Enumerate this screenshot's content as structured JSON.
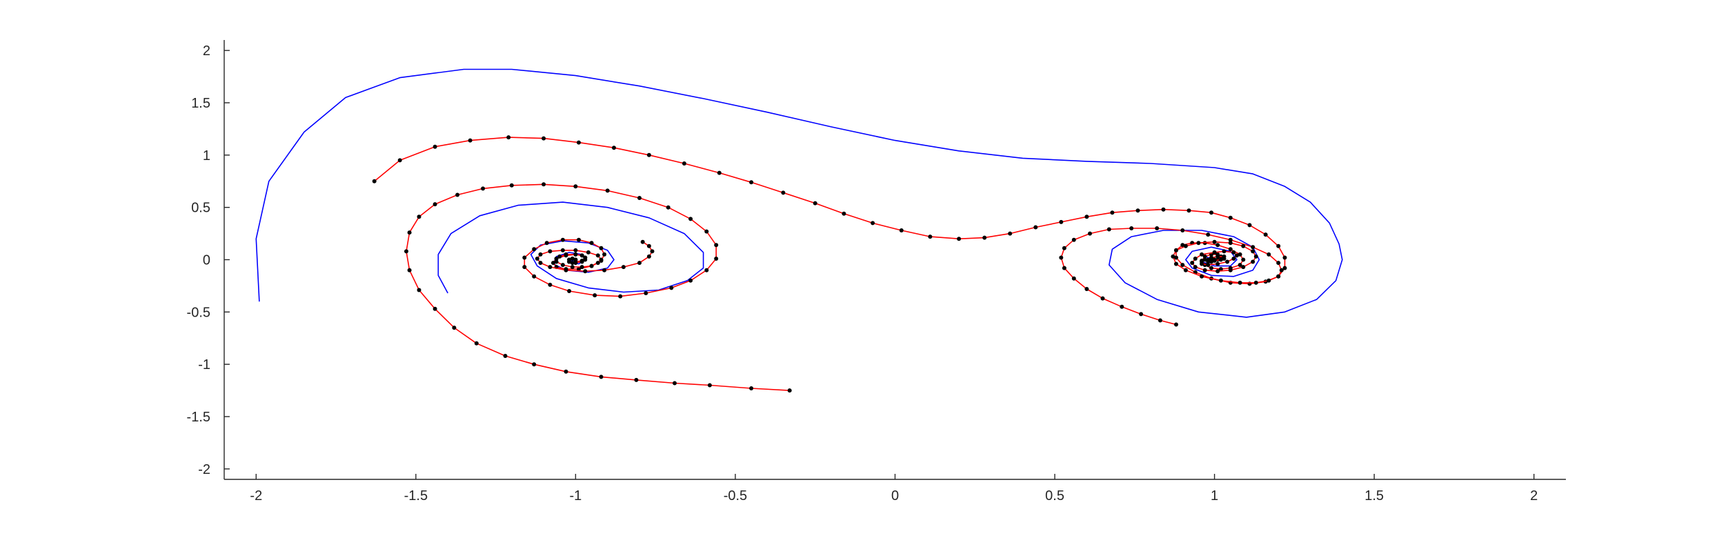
{
  "chart_data": {
    "type": "line",
    "title": "",
    "xlabel": "",
    "ylabel": "",
    "xlim": [
      -2.1,
      2.1
    ],
    "ylim": [
      -2.1,
      2.1
    ],
    "xticks": [
      -2,
      -1.5,
      -1,
      -0.5,
      0,
      0.5,
      1,
      1.5,
      2
    ],
    "yticks": [
      -2,
      -1.5,
      -1,
      -0.5,
      0,
      0.5,
      1,
      1.5,
      2
    ],
    "xtick_labels": [
      "-2",
      "-1.5",
      "-1",
      "-0.5",
      "0",
      "0.5",
      "1",
      "1.5",
      "2"
    ],
    "ytick_labels": [
      "-2",
      "-1.5",
      "-1",
      "-0.5",
      "0",
      "0.5",
      "1",
      "1.5",
      "2"
    ],
    "grid": false,
    "legend": "none",
    "colors": {
      "blue": "#0000ff",
      "red": "#ff0000",
      "marker": "#000000"
    },
    "series": [
      {
        "style": "blue-line",
        "x": [
          -1.99,
          -2.0,
          -1.96,
          -1.85,
          -1.72,
          -1.55,
          -1.35,
          -1.2,
          -1.0,
          -0.8,
          -0.6,
          -0.4,
          -0.2,
          0.0,
          0.2,
          0.4,
          0.6,
          0.8,
          1.0,
          1.12,
          1.22,
          1.3,
          1.36,
          1.39,
          1.4,
          1.38,
          1.32,
          1.22,
          1.1,
          0.95,
          0.82,
          0.72,
          0.67,
          0.68,
          0.74,
          0.84,
          0.96,
          1.06,
          1.12,
          1.14,
          1.12,
          1.06,
          0.99,
          0.93,
          0.91,
          0.93,
          0.99,
          1.05,
          1.07,
          1.05,
          1.0,
          0.96,
          0.97,
          1.0
        ],
        "y": [
          -0.4,
          0.2,
          0.75,
          1.22,
          1.55,
          1.74,
          1.82,
          1.82,
          1.76,
          1.66,
          1.54,
          1.41,
          1.27,
          1.14,
          1.04,
          0.97,
          0.94,
          0.92,
          0.88,
          0.82,
          0.7,
          0.55,
          0.35,
          0.15,
          0.0,
          -0.2,
          -0.38,
          -0.5,
          -0.55,
          -0.5,
          -0.38,
          -0.22,
          -0.05,
          0.1,
          0.22,
          0.28,
          0.28,
          0.22,
          0.12,
          0.0,
          -0.1,
          -0.16,
          -0.15,
          -0.08,
          0.0,
          0.08,
          0.12,
          0.08,
          0.0,
          -0.06,
          -0.06,
          -0.02,
          0.03,
          0.0
        ]
      },
      {
        "style": "blue-line",
        "x": [
          -1.4,
          -1.43,
          -1.43,
          -1.39,
          -1.3,
          -1.18,
          -1.04,
          -0.9,
          -0.77,
          -0.66,
          -0.6,
          -0.6,
          -0.65,
          -0.74,
          -0.85,
          -0.96,
          -1.06,
          -1.12,
          -1.14,
          -1.11,
          -1.04,
          -0.96,
          -0.9,
          -0.88,
          -0.9,
          -0.96,
          -1.03,
          -1.07,
          -1.06,
          -1.02,
          -0.98,
          -0.97,
          -0.99,
          -1.02,
          -1.0
        ],
        "y": [
          -0.32,
          -0.15,
          0.05,
          0.25,
          0.42,
          0.52,
          0.55,
          0.5,
          0.4,
          0.25,
          0.07,
          -0.08,
          -0.2,
          -0.29,
          -0.31,
          -0.27,
          -0.18,
          -0.06,
          0.05,
          0.14,
          0.18,
          0.16,
          0.09,
          0.0,
          -0.08,
          -0.12,
          -0.1,
          -0.04,
          0.03,
          0.07,
          0.05,
          0.0,
          -0.04,
          -0.02,
          0.0
        ]
      },
      {
        "style": "red-dotted-line",
        "x": [
          -1.63,
          -1.55,
          -1.44,
          -1.33,
          -1.21,
          -1.1,
          -0.99,
          -0.88,
          -0.77,
          -0.66,
          -0.55,
          -0.45,
          -0.35,
          -0.25,
          -0.16,
          -0.07,
          0.02,
          0.11,
          0.2,
          0.28,
          0.36,
          0.44,
          0.52,
          0.6,
          0.68,
          0.76,
          0.84,
          0.92,
          0.99,
          1.05,
          1.11,
          1.16,
          1.2,
          1.22,
          1.22,
          1.2,
          1.16,
          1.11,
          1.05,
          0.99,
          0.94,
          0.9,
          0.88,
          0.88,
          0.9,
          0.93,
          0.97,
          1.01,
          1.05,
          1.08,
          1.09,
          1.08,
          1.05,
          1.02,
          0.99,
          0.97,
          0.96,
          0.97,
          0.99,
          1.01,
          1.02,
          1.01,
          0.99,
          0.98,
          0.99,
          1.0
        ],
        "y": [
          0.75,
          0.95,
          1.08,
          1.14,
          1.17,
          1.16,
          1.12,
          1.07,
          1.0,
          0.92,
          0.83,
          0.74,
          0.64,
          0.54,
          0.44,
          0.35,
          0.28,
          0.22,
          0.2,
          0.21,
          0.25,
          0.31,
          0.36,
          0.41,
          0.45,
          0.47,
          0.48,
          0.47,
          0.45,
          0.4,
          0.33,
          0.24,
          0.13,
          0.02,
          -0.08,
          -0.16,
          -0.21,
          -0.23,
          -0.22,
          -0.18,
          -0.12,
          -0.05,
          0.02,
          0.09,
          0.14,
          0.16,
          0.16,
          0.14,
          0.1,
          0.05,
          0.0,
          -0.05,
          -0.08,
          -0.09,
          -0.08,
          -0.05,
          -0.01,
          0.03,
          0.05,
          0.05,
          0.03,
          0.0,
          -0.02,
          -0.02,
          0.0,
          0.0
        ]
      },
      {
        "style": "red-dotted-line",
        "x": [
          -0.33,
          -0.45,
          -0.58,
          -0.69,
          -0.81,
          -0.92,
          -1.03,
          -1.13,
          -1.22,
          -1.31,
          -1.38,
          -1.44,
          -1.49,
          -1.52,
          -1.53,
          -1.52,
          -1.49,
          -1.44,
          -1.37,
          -1.29,
          -1.2,
          -1.1,
          -1.0,
          -0.9,
          -0.8,
          -0.71,
          -0.64,
          -0.59,
          -0.56,
          -0.56,
          -0.59,
          -0.64,
          -0.7,
          -0.78,
          -0.86,
          -0.94,
          -1.02,
          -1.08,
          -1.13,
          -1.16,
          -1.16,
          -1.13,
          -1.09,
          -1.04,
          -0.99,
          -0.95,
          -0.92,
          -0.91,
          -0.92,
          -0.95,
          -0.99,
          -1.03,
          -1.06,
          -1.07,
          -1.06,
          -1.03,
          -1.0,
          -0.98,
          -0.97,
          -0.98,
          -1.0,
          -1.02,
          -1.02,
          -1.01,
          -1.0
        ],
        "y": [
          -1.25,
          -1.23,
          -1.2,
          -1.18,
          -1.15,
          -1.12,
          -1.07,
          -1.0,
          -0.92,
          -0.8,
          -0.65,
          -0.47,
          -0.29,
          -0.1,
          0.08,
          0.26,
          0.41,
          0.53,
          0.62,
          0.68,
          0.71,
          0.72,
          0.7,
          0.66,
          0.59,
          0.5,
          0.39,
          0.27,
          0.14,
          0.01,
          -0.1,
          -0.2,
          -0.27,
          -0.32,
          -0.35,
          -0.34,
          -0.3,
          -0.24,
          -0.16,
          -0.07,
          0.02,
          0.1,
          0.16,
          0.19,
          0.19,
          0.16,
          0.11,
          0.05,
          -0.01,
          -0.06,
          -0.09,
          -0.09,
          -0.07,
          -0.03,
          0.01,
          0.04,
          0.05,
          0.04,
          0.02,
          -0.01,
          -0.02,
          -0.02,
          0.0,
          0.01,
          0.0
        ]
      },
      {
        "style": "red-dotted-line",
        "x": [
          0.88,
          0.83,
          0.77,
          0.71,
          0.65,
          0.6,
          0.56,
          0.53,
          0.52,
          0.53,
          0.56,
          0.61,
          0.67,
          0.74,
          0.82,
          0.9,
          0.98,
          1.05,
          1.12,
          1.17,
          1.2,
          1.21,
          1.2,
          1.17,
          1.13,
          1.08,
          1.02,
          0.96,
          0.91,
          0.88,
          0.87,
          0.88,
          0.91,
          0.95,
          1.0,
          1.05,
          1.09,
          1.12,
          1.13,
          1.12,
          1.09,
          1.05,
          1.01,
          0.97,
          0.94,
          0.93,
          0.94,
          0.96,
          1.0,
          1.03,
          1.06,
          1.07,
          1.06,
          1.04,
          1.01,
          0.98,
          0.96,
          0.96,
          0.97,
          0.99,
          1.01,
          1.03,
          1.03,
          1.02,
          1.0,
          0.99,
          0.98,
          0.99,
          1.0
        ],
        "y": [
          -0.62,
          -0.58,
          -0.52,
          -0.45,
          -0.37,
          -0.28,
          -0.18,
          -0.08,
          0.02,
          0.11,
          0.19,
          0.25,
          0.29,
          0.3,
          0.3,
          0.28,
          0.24,
          0.19,
          0.12,
          0.05,
          -0.03,
          -0.1,
          -0.16,
          -0.2,
          -0.22,
          -0.22,
          -0.2,
          -0.16,
          -0.1,
          -0.04,
          0.03,
          0.09,
          0.13,
          0.16,
          0.17,
          0.16,
          0.13,
          0.08,
          0.03,
          -0.02,
          -0.07,
          -0.1,
          -0.11,
          -0.1,
          -0.07,
          -0.03,
          0.01,
          0.05,
          0.07,
          0.08,
          0.07,
          0.04,
          0.01,
          -0.02,
          -0.04,
          -0.05,
          -0.04,
          -0.02,
          0.0,
          0.02,
          0.03,
          0.03,
          0.01,
          0.0,
          -0.01,
          -0.01,
          0.0,
          0.01,
          0.0
        ]
      },
      {
        "style": "red-dotted-line",
        "x": [
          -0.79,
          -0.77,
          -0.76,
          -0.77,
          -0.8,
          -0.85,
          -0.91,
          -0.97,
          -1.03,
          -1.08,
          -1.11,
          -1.12,
          -1.11,
          -1.08,
          -1.04,
          -1.0,
          -0.96,
          -0.93,
          -0.92,
          -0.93,
          -0.95,
          -0.98,
          -1.01,
          -1.04,
          -1.06,
          -1.06,
          -1.05,
          -1.03,
          -1.0,
          -0.98,
          -0.97,
          -0.97,
          -0.98,
          -1.0,
          -1.01,
          -1.02,
          -1.02,
          -1.01,
          -1.0
        ],
        "y": [
          0.17,
          0.13,
          0.08,
          0.03,
          -0.03,
          -0.07,
          -0.1,
          -0.11,
          -0.1,
          -0.07,
          -0.03,
          0.01,
          0.05,
          0.08,
          0.09,
          0.09,
          0.07,
          0.04,
          0.0,
          -0.03,
          -0.06,
          -0.07,
          -0.07,
          -0.05,
          -0.02,
          0.01,
          0.03,
          0.05,
          0.05,
          0.04,
          0.02,
          0.0,
          -0.02,
          -0.03,
          -0.03,
          -0.02,
          0.0,
          0.01,
          0.0
        ]
      }
    ]
  }
}
